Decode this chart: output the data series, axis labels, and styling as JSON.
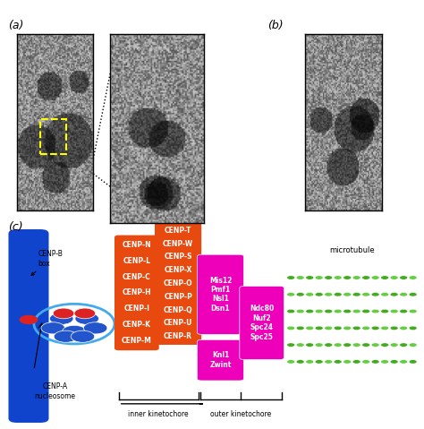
{
  "panel_a_label": "(a)",
  "panel_b_label": "(b)",
  "panel_c_label": "(c)",
  "orange_color": "#E8490F",
  "magenta_color": "#EE00BB",
  "magenta2_color": "#CC00AA",
  "green_light": "#66CC44",
  "green_dark": "#44AA22",
  "blue_chromosome": "#1144CC",
  "blue_light": "#44AAEE",
  "red_cenp": "#DD2222",
  "blue_nucleosome": "#2255CC",
  "left_column": [
    "CENP-N",
    "CENP-L",
    "CENP-C",
    "CENP-H",
    "CENP-I",
    "CENP-K",
    "CENP-M"
  ],
  "right_column": [
    "CENP-T",
    "CENP-W",
    "CENP-S",
    "CENP-X",
    "CENP-O",
    "CENP-P",
    "CENP-Q",
    "CENP-U",
    "CENP-R"
  ],
  "mis12_group": [
    "Mis12",
    "Pmf1",
    "Nsl1",
    "Dsn1"
  ],
  "knl1_group": [
    "Knl1",
    "Zwint"
  ],
  "ndc80_group": [
    "Ndc80",
    "Nuf2",
    "Spc24",
    "Spc25"
  ],
  "inner_kinet_label": "inner kinetochore",
  "outer_kinet_label": "outer kinetochore",
  "microtubule_label": "microtubule",
  "cenp_b_label": "CENP-B\nbox",
  "cenp_a_label": "CENP-A\nnucleosome"
}
